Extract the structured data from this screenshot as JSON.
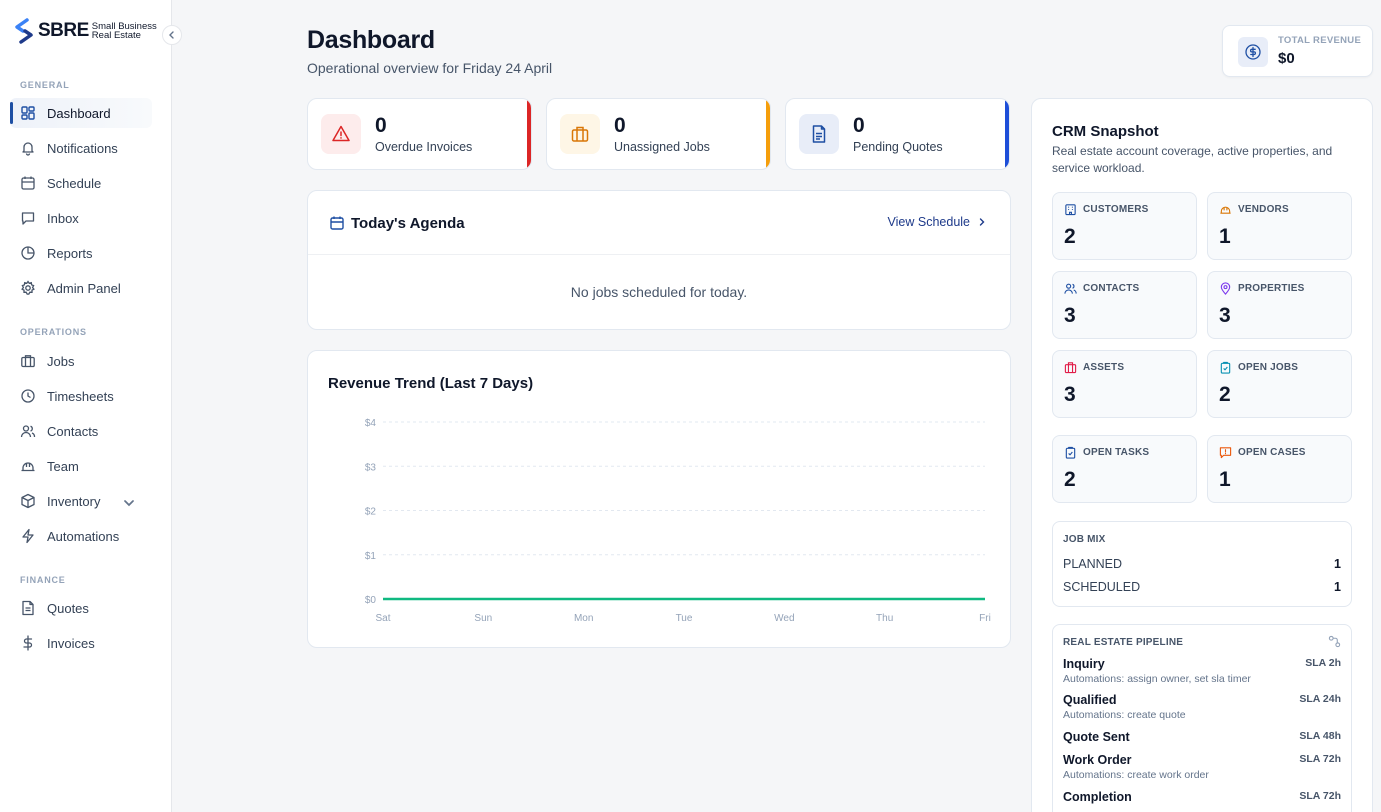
{
  "brand": {
    "name": "SBRE",
    "tagline": "Small Business Real Estate"
  },
  "sidebar": {
    "sections": [
      {
        "label": "GENERAL",
        "items": [
          {
            "label": "Dashboard",
            "icon": "grid-icon",
            "active": true
          },
          {
            "label": "Notifications",
            "icon": "bell-icon"
          },
          {
            "label": "Schedule",
            "icon": "calendar-icon"
          },
          {
            "label": "Inbox",
            "icon": "message-icon"
          },
          {
            "label": "Reports",
            "icon": "pie-chart-icon"
          },
          {
            "label": "Admin Panel",
            "icon": "gear-icon"
          }
        ]
      },
      {
        "label": "OPERATIONS",
        "items": [
          {
            "label": "Jobs",
            "icon": "briefcase-icon"
          },
          {
            "label": "Timesheets",
            "icon": "clock-icon"
          },
          {
            "label": "Contacts",
            "icon": "users-icon"
          },
          {
            "label": "Team",
            "icon": "hardhat-icon"
          },
          {
            "label": "Inventory",
            "icon": "box-icon"
          },
          {
            "label": "Automations",
            "icon": "lightning-icon"
          }
        ]
      },
      {
        "label": "FINANCE",
        "items": [
          {
            "label": "Quotes",
            "icon": "document-icon"
          },
          {
            "label": "Invoices",
            "icon": "dollar-icon"
          }
        ]
      }
    ]
  },
  "header": {
    "title": "Dashboard",
    "subtitle": "Operational overview for Friday 24 April"
  },
  "revenue": {
    "label": "TOTAL REVENUE",
    "value": "$0"
  },
  "stats": [
    {
      "value": "0",
      "label": "Overdue Invoices",
      "color": "#dc2626"
    },
    {
      "value": "0",
      "label": "Unassigned Jobs",
      "color": "#f59e0b"
    },
    {
      "value": "0",
      "label": "Pending Quotes",
      "color": "#1d4ed8"
    }
  ],
  "agenda": {
    "title": "Today's Agenda",
    "link": "View Schedule",
    "empty": "No jobs scheduled for today."
  },
  "chart_data": {
    "type": "line",
    "title": "Revenue Trend (Last 7 Days)",
    "categories": [
      "Sat",
      "Sun",
      "Mon",
      "Tue",
      "Wed",
      "Thu",
      "Fri"
    ],
    "values": [
      0,
      0,
      0,
      0,
      0,
      0,
      0
    ],
    "y_ticks": [
      "$0",
      "$1",
      "$2",
      "$3",
      "$4"
    ],
    "ylim": [
      0,
      4
    ],
    "grid": true,
    "line_color": "#10b981"
  },
  "crm": {
    "title": "CRM Snapshot",
    "subtitle": "Real estate account coverage, active properties, and service workload.",
    "tiles": [
      {
        "label": "CUSTOMERS",
        "value": "2",
        "icon": "building-icon",
        "color": "#1e4fa3"
      },
      {
        "label": "VENDORS",
        "value": "1",
        "icon": "hardhat-icon",
        "color": "#d97706"
      },
      {
        "label": "CONTACTS",
        "value": "3",
        "icon": "users-icon",
        "color": "#1e4fa3"
      },
      {
        "label": "PROPERTIES",
        "value": "3",
        "icon": "map-pin-icon",
        "color": "#7c3aed"
      },
      {
        "label": "ASSETS",
        "value": "3",
        "icon": "briefcase-icon",
        "color": "#e11d48"
      },
      {
        "label": "OPEN JOBS",
        "value": "2",
        "icon": "clipboard-icon",
        "color": "#0891b2"
      },
      {
        "label": "OPEN TASKS",
        "value": "2",
        "icon": "clipboard-check-icon",
        "color": "#1e4fa3"
      },
      {
        "label": "OPEN CASES",
        "value": "1",
        "icon": "alert-message-icon",
        "color": "#ea580c"
      }
    ],
    "job_mix": {
      "label": "JOB MIX",
      "rows": [
        {
          "label": "PLANNED",
          "value": "1"
        },
        {
          "label": "SCHEDULED",
          "value": "1"
        }
      ]
    },
    "pipeline": {
      "label": "REAL ESTATE PIPELINE",
      "stages": [
        {
          "name": "Inquiry",
          "sla": "SLA 2h",
          "automations": "Automations: assign owner, set sla timer"
        },
        {
          "name": "Qualified",
          "sla": "SLA 24h",
          "automations": "Automations: create quote"
        },
        {
          "name": "Quote Sent",
          "sla": "SLA 48h",
          "automations": ""
        },
        {
          "name": "Work Order",
          "sla": "SLA 72h",
          "automations": "Automations: create work order"
        },
        {
          "name": "Completion",
          "sla": "SLA 72h",
          "automations": ""
        }
      ]
    }
  }
}
